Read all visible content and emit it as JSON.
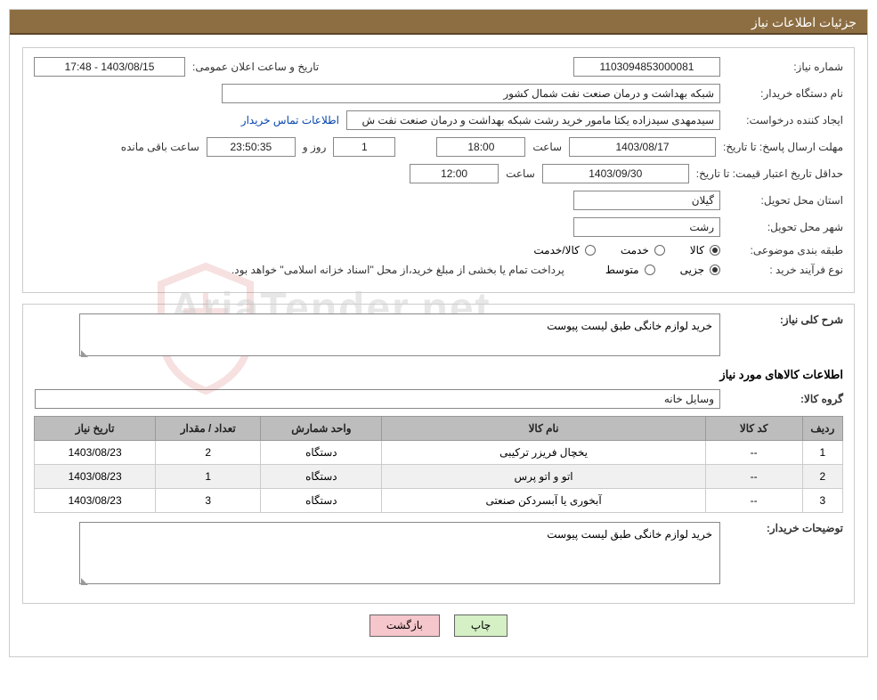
{
  "titleBar": "جزئیات اطلاعات نیاز",
  "labels": {
    "needNumber": "شماره نیاز:",
    "announceDateTime": "تاریخ و ساعت اعلان عمومی:",
    "buyerOrg": "نام دستگاه خریدار:",
    "requestCreator": "ایجاد کننده درخواست:",
    "buyerContact": "اطلاعات تماس خریدار",
    "responseDeadline": "مهلت ارسال پاسخ:",
    "untilDate": "تا تاریخ:",
    "hour": "ساعت",
    "daysAnd": "روز و",
    "remainingHours": "ساعت باقی مانده",
    "priceValidityMin": "حداقل تاریخ اعتبار قیمت:",
    "deliveryProvince": "استان محل تحویل:",
    "deliveryCity": "شهر محل تحویل:",
    "subjectCategory": "طبقه بندی موضوعی:",
    "purchaseProcessType": "نوع فرآیند خرید :",
    "goods": "کالا",
    "service": "خدمت",
    "goodsService": "کالا/خدمت",
    "minor": "جزیی",
    "medium": "متوسط",
    "paymentNote": "پرداخت تمام یا بخشی از مبلغ خرید،از محل \"اسناد خزانه اسلامی\" خواهد بود.",
    "needSummary": "شرح کلی نیاز:",
    "requiredGoodsInfo": "اطلاعات کالاهای مورد نیاز",
    "goodsGroup": "گروه کالا:",
    "buyerNotes": "توضیحات خریدار:"
  },
  "values": {
    "needNumber": "1103094853000081",
    "announceDateTime": "1403/08/15 - 17:48",
    "buyerOrg": "شبکه بهداشت و درمان صنعت نفت شمال کشور",
    "requestCreator": "سیدمهدی سیدزاده یکتا مامور خرید رشت شبکه بهداشت و درمان صنعت نفت ش",
    "responseDate": "1403/08/17",
    "responseHour": "18:00",
    "daysRemaining": "1",
    "hoursRemaining": "23:50:35",
    "priceValidityDate": "1403/09/30",
    "priceValidityHour": "12:00",
    "province": "گیلان",
    "city": "رشت",
    "needSummaryText": "خرید لوازم خانگی طبق لیست پیوست",
    "goodsGroup": "وسایل خانه",
    "buyerNotesText": "خرید لوازم خانگی طبق لیست پیوست"
  },
  "radios": {
    "categoryChecked": "goods",
    "processChecked": "minor"
  },
  "table": {
    "columns": [
      "ردیف",
      "کد کالا",
      "نام کالا",
      "واحد شمارش",
      "تعداد / مقدار",
      "تاریخ نیاز"
    ],
    "colWidths": [
      "5%",
      "12%",
      "40%",
      "15%",
      "13%",
      "15%"
    ],
    "rows": [
      [
        "1",
        "--",
        "یخچال فریزر ترکیبی",
        "دستگاه",
        "2",
        "1403/08/23"
      ],
      [
        "2",
        "--",
        "اتو و اتو پرس",
        "دستگاه",
        "1",
        "1403/08/23"
      ],
      [
        "3",
        "--",
        "آبخوری یا آبسردکن صنعتی",
        "دستگاه",
        "3",
        "1403/08/23"
      ]
    ]
  },
  "buttons": {
    "print": "چاپ",
    "back": "بازگشت"
  },
  "watermarkText": "AriaTender.net",
  "colors": {
    "titleBarBg": "#8d6e42",
    "titleBarBorder": "#5a4527",
    "tableHeaderBg": "#bdbdbd",
    "btnPrint": "#d4f0c4",
    "btnBack": "#f5c6cb",
    "link": "#0645ad"
  }
}
